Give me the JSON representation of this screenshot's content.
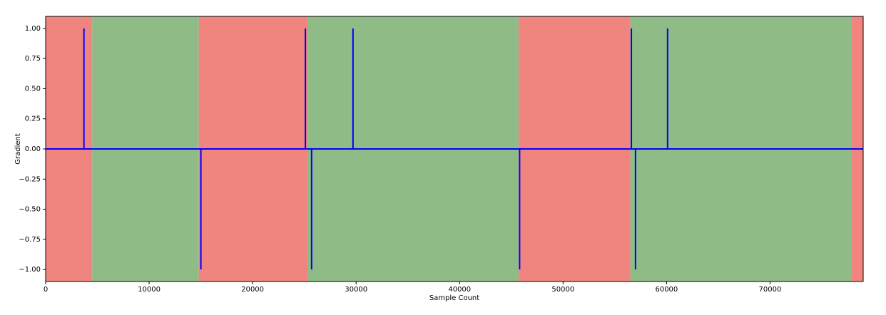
{
  "chart_data": {
    "type": "line",
    "x_label": "Sample Count",
    "y_label": "Gradient",
    "regions": [
      {
        "start": 0,
        "end": 4500,
        "color": "#f08580"
      },
      {
        "start": 4500,
        "end": 14800,
        "color": "#8fbc86"
      },
      {
        "start": 14800,
        "end": 25300,
        "color": "#f08580"
      },
      {
        "start": 25300,
        "end": 45700,
        "color": "#8fbc86"
      },
      {
        "start": 45700,
        "end": 56500,
        "color": "#f08580"
      },
      {
        "start": 56500,
        "end": 77900,
        "color": "#8fbc86"
      },
      {
        "start": 77900,
        "end": 79000,
        "color": "#f08580"
      }
    ],
    "x": [
      0,
      3700,
      3700,
      3700,
      15000,
      15000,
      15000,
      25100,
      25100,
      25100,
      25700,
      25700,
      25700,
      29700,
      29700,
      29700,
      45800,
      45800,
      45800,
      56600,
      56600,
      56600,
      57000,
      57000,
      57000,
      60100,
      60100,
      60100,
      79000
    ],
    "series": [
      {
        "color": "#0000ff",
        "values": [
          0,
          0,
          1,
          0,
          0,
          -1,
          0,
          0,
          1,
          0,
          0,
          -1,
          0,
          0,
          1,
          0,
          0,
          -1,
          0,
          0,
          1,
          0,
          0,
          -1,
          0,
          0,
          1,
          0,
          0
        ]
      }
    ],
    "xlim": [
      0,
      79000
    ],
    "ylim": [
      -1.1,
      1.1
    ],
    "xticks": [
      0,
      10000,
      20000,
      30000,
      40000,
      50000,
      60000,
      70000
    ],
    "yticks": [
      {
        "value": -1,
        "label": "−1.00"
      },
      {
        "value": -0.75,
        "label": "−0.75"
      },
      {
        "value": -0.5,
        "label": "−0.50"
      },
      {
        "value": -0.25,
        "label": "−0.25"
      },
      {
        "value": 0,
        "label": "0.00"
      },
      {
        "value": 0.25,
        "label": "0.25"
      },
      {
        "value": 0.5,
        "label": "0.50"
      },
      {
        "value": 0.75,
        "label": "0.75"
      },
      {
        "value": 1,
        "label": "1.00"
      }
    ]
  }
}
